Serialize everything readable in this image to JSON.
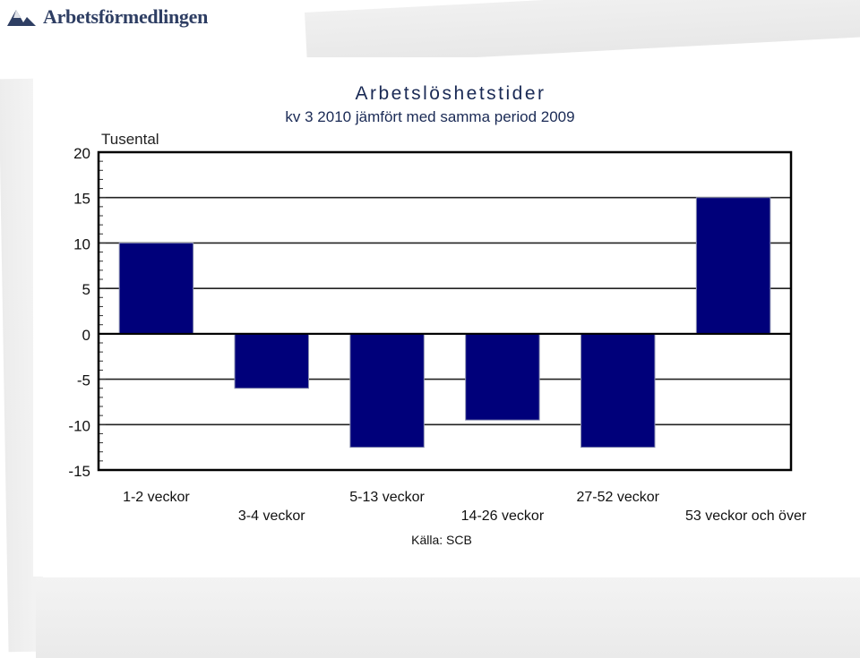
{
  "logo": {
    "name": "Arbetsförmedlingen",
    "icon": "af-logo-icon",
    "color": "#2e3e63"
  },
  "chart_data": {
    "type": "bar",
    "title": "Arbetslöshetstider",
    "subtitle": "kv 3 2010 jämfört med samma period 2009",
    "ylabel": "Tusental",
    "source": "Källa:  SCB",
    "categories": [
      "1-2 veckor",
      "3-4 veckor",
      "5-13 veckor",
      "14-26 veckor",
      "27-52 veckor",
      "53 veckor och över"
    ],
    "values": [
      10,
      -6,
      -12.5,
      -9.5,
      -12.5,
      15
    ],
    "ylim": [
      -15,
      20
    ],
    "yticks": [
      20,
      15,
      10,
      5,
      0,
      -5,
      -10,
      -15
    ],
    "grid": true,
    "bar_color": "#00007a",
    "legend": "none"
  }
}
